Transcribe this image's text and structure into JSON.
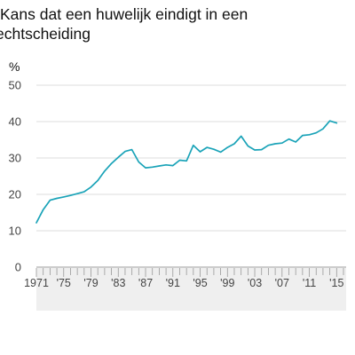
{
  "chart_data": {
    "type": "line",
    "title_lines": [
      "Kans dat een huwelijk eindigt in een",
      "echtscheiding"
    ],
    "ylabel": "%",
    "xlabel": "",
    "ylim": [
      0,
      50
    ],
    "yticks": [
      0,
      10,
      20,
      30,
      40,
      50
    ],
    "xlim": [
      1971,
      2016
    ],
    "xtick_labels": [
      {
        "year": 1971,
        "label": "1971"
      },
      {
        "year": 1975,
        "label": "'75"
      },
      {
        "year": 1979,
        "label": "'79"
      },
      {
        "year": 1983,
        "label": "'83"
      },
      {
        "year": 1987,
        "label": "'87"
      },
      {
        "year": 1991,
        "label": "'91"
      },
      {
        "year": 1995,
        "label": "'95"
      },
      {
        "year": 1999,
        "label": "'99"
      },
      {
        "year": 2003,
        "label": "'03"
      },
      {
        "year": 2007,
        "label": "'07"
      },
      {
        "year": 2011,
        "label": "'11"
      },
      {
        "year": 2015,
        "label": "'15"
      }
    ],
    "grid": true,
    "series": [
      {
        "color": "#1aa3b8",
        "x": [
          1971,
          1972,
          1973,
          1974,
          1975,
          1976,
          1977,
          1978,
          1979,
          1980,
          1981,
          1982,
          1983,
          1984,
          1985,
          1986,
          1987,
          1988,
          1989,
          1990,
          1991,
          1992,
          1993,
          1994,
          1995,
          1996,
          1997,
          1998,
          1999,
          2000,
          2001,
          2002,
          2003,
          2004,
          2005,
          2006,
          2007,
          2008,
          2009,
          2010,
          2011,
          2012,
          2013,
          2014,
          2015,
          2016
        ],
        "y": [
          12.2,
          15.8,
          18.4,
          18.9,
          19.3,
          19.7,
          20.2,
          20.7,
          22.0,
          23.8,
          26.4,
          28.5,
          30.2,
          31.8,
          32.3,
          28.9,
          27.3,
          27.5,
          27.8,
          28.1,
          27.9,
          29.4,
          29.2,
          33.5,
          31.7,
          32.9,
          32.4,
          31.6,
          32.9,
          33.9,
          36.0,
          33.3,
          32.2,
          32.3,
          33.5,
          33.9,
          34.1,
          35.2,
          34.4,
          36.2,
          36.4,
          36.9,
          38.0,
          40.2,
          39.6,
          null
        ]
      }
    ]
  }
}
